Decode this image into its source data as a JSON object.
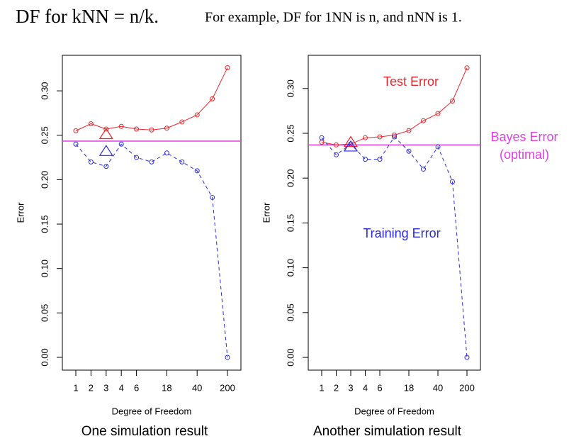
{
  "header": {
    "title": "DF for kNN = n/k.",
    "note": "For example, DF for 1NN is n, and nNN is 1."
  },
  "chart_data": [
    {
      "type": "line",
      "caption": "One simulation result",
      "x_label": "Degree of Freedom",
      "y_label": "Error",
      "categories": [
        "1",
        "2",
        "3",
        "4",
        "6",
        null,
        "18",
        null,
        "40",
        null,
        "200"
      ],
      "ylim": [
        -0.0144,
        0.34
      ],
      "yticks": [
        {
          "value": 0,
          "label": "0.00"
        },
        {
          "value": 0.05,
          "label": "0.05"
        },
        {
          "value": 0.1,
          "label": "0.10"
        },
        {
          "value": 0.15,
          "label": "0.15"
        },
        {
          "value": 0.2,
          "label": "0.20"
        },
        {
          "value": 0.25,
          "label": "0.25"
        },
        {
          "value": 0.3,
          "label": "0.30"
        }
      ],
      "series": [
        {
          "color": "#e8252a",
          "dashed": false,
          "values": [
            0.255,
            0.263,
            0.257,
            0.26,
            0.257,
            0.256,
            0.258,
            0.265,
            0.273,
            0.291,
            0.326
          ]
        },
        {
          "color": "#2a2ae0",
          "dashed": true,
          "values": [
            0.24,
            0.22,
            0.215,
            0.24,
            0.225,
            0.22,
            0.23,
            0.22,
            0.21,
            0.18,
            0.0
          ]
        }
      ],
      "hline": {
        "value": 0.2434,
        "color": "#e040e0"
      },
      "markers": [
        {
          "category": "3",
          "value": 0.251,
          "color": "#e8252a"
        },
        {
          "category": "3",
          "value": 0.232,
          "color": "#2a2ae0"
        }
      ]
    },
    {
      "type": "line",
      "caption": "Another simulation result",
      "x_label": "Degree of Freedom",
      "y_label": "Error",
      "categories": [
        "1",
        "2",
        "3",
        "4",
        "6",
        null,
        "18",
        null,
        "40",
        null,
        "200"
      ],
      "ylim": [
        -0.0142,
        0.337
      ],
      "yticks": [
        {
          "value": 0,
          "label": "0.00"
        },
        {
          "value": 0.05,
          "label": "0.05"
        },
        {
          "value": 0.1,
          "label": "0.10"
        },
        {
          "value": 0.15,
          "label": "0.15"
        },
        {
          "value": 0.2,
          "label": "0.20"
        },
        {
          "value": 0.25,
          "label": "0.25"
        },
        {
          "value": 0.3,
          "label": "0.30"
        }
      ],
      "series": [
        {
          "color": "#e8252a",
          "dashed": false,
          "values": [
            0.24,
            0.237,
            0.238,
            0.245,
            0.246,
            0.248,
            0.253,
            0.264,
            0.272,
            0.286,
            0.323
          ]
        },
        {
          "color": "#2a2ae0",
          "dashed": true,
          "values": [
            0.245,
            0.226,
            0.238,
            0.221,
            0.221,
            0.246,
            0.23,
            0.21,
            0.235,
            0.196,
            0.0
          ]
        }
      ],
      "hline": {
        "value": 0.237,
        "color": "#e040e0"
      },
      "markers": [
        {
          "category": "3",
          "value": 0.24,
          "color": "#e8252a"
        },
        {
          "category": "3",
          "value": 0.235,
          "color": "#2a2ae0"
        }
      ],
      "annotations": [
        {
          "text": "Test Error",
          "color": "#e8252a"
        },
        {
          "text": "Training Error",
          "color": "#2a2ae0"
        },
        {
          "text": "Bayes Error",
          "color": "#e040e0"
        },
        {
          "text": "(optimal)",
          "color": "#e040e0"
        }
      ]
    }
  ]
}
